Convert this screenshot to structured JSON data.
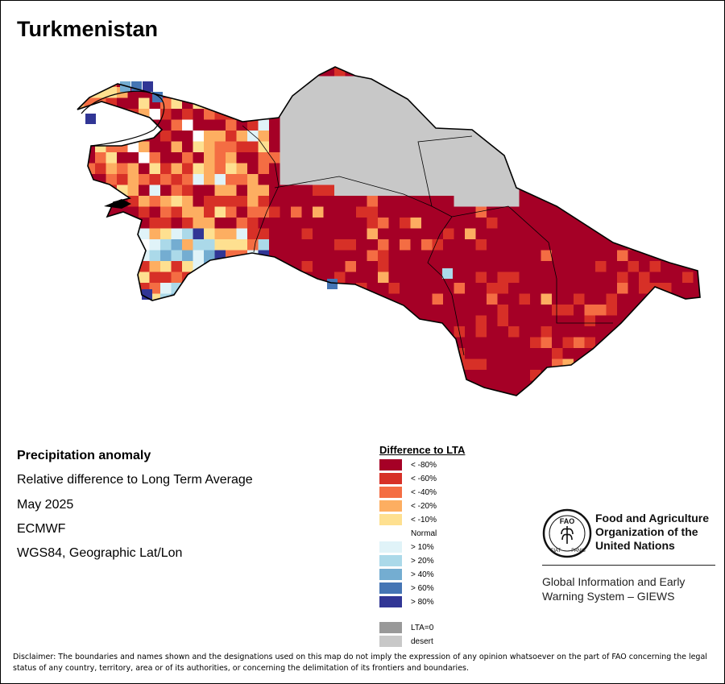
{
  "title": "Turkmenistan",
  "info": {
    "heading": "Precipitation anomaly",
    "subtitle": "Relative difference to Long Term Average",
    "period": "May 2025",
    "source": "ECMWF",
    "projection": "WGS84, Geographic Lat/Lon"
  },
  "legend": {
    "title": "Difference to LTA",
    "items": [
      {
        "label": "< -80%",
        "color": "#a50026"
      },
      {
        "label": "< -60%",
        "color": "#d73027"
      },
      {
        "label": "< -40%",
        "color": "#f46d43"
      },
      {
        "label": "< -20%",
        "color": "#fdae61"
      },
      {
        "label": "< -10%",
        "color": "#fee090"
      },
      {
        "label": "Normal",
        "color": "#ffffff"
      },
      {
        "label": "> 10%",
        "color": "#e0f3f8"
      },
      {
        "label": "> 20%",
        "color": "#abd9e9"
      },
      {
        "label": "> 40%",
        "color": "#74add1"
      },
      {
        "label": "> 60%",
        "color": "#4575b4"
      },
      {
        "label": "> 80%",
        "color": "#313695"
      }
    ],
    "extra": [
      {
        "label": "LTA=0",
        "color": "#999999"
      },
      {
        "label": "desert",
        "color": "#c8c8c8"
      }
    ]
  },
  "fao": {
    "name_lines": [
      "Food and Agriculture",
      "Organization of the",
      "United Nations"
    ],
    "logo_letters": "FAO",
    "logo_motto_left": "FIAT",
    "logo_motto_right": "PANIS"
  },
  "giews": {
    "line1": "Global Information and Early",
    "line2": "Warning System – GIEWS"
  },
  "disclaimer": "Disclaimer: The boundaries and names shown and the designations used on this map do not imply the expression of any opinion whatsoever on the part of FAO concerning the legal status of any country, territory, area or of its authorities, or concerning the delimitation of its frontiers and boundaries."
}
